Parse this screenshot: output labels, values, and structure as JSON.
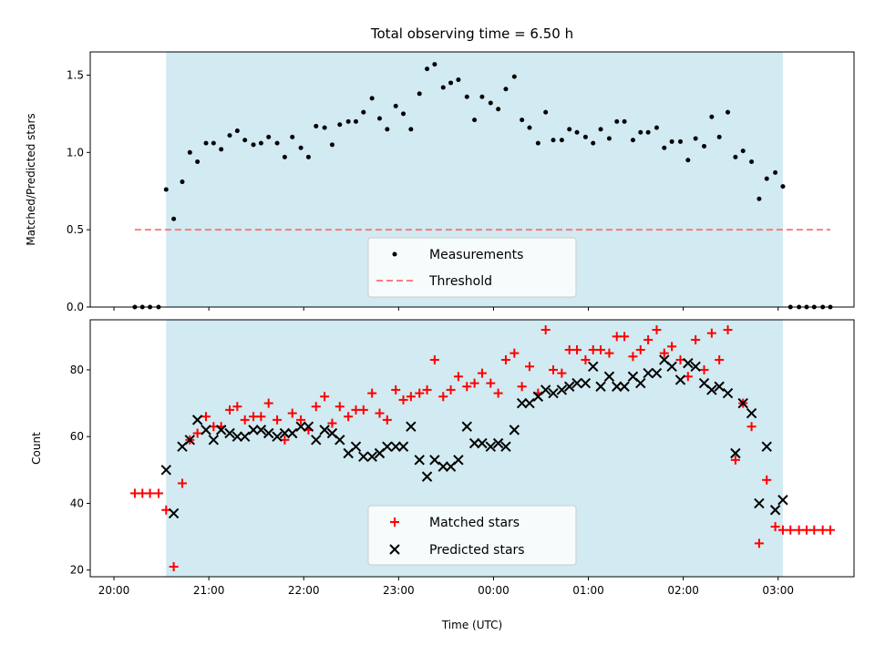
{
  "title": "Total observing time = 6.50 h",
  "chart_data": [
    {
      "type": "scatter",
      "ylabel": "Matched/Predicted stars",
      "xlim": [
        -0.25,
        7.8
      ],
      "ylim": [
        0,
        1.65
      ],
      "yticks": [
        0.0,
        0.5,
        1.0,
        1.5
      ],
      "ytick_labels": [
        "0.0",
        "0.5",
        "1.0",
        "1.5"
      ],
      "observing_window": [
        0.55,
        7.05
      ],
      "shade_color": "#add8e6",
      "legend": {
        "placement": "lower-center",
        "entries": [
          "Measurements",
          "Threshold"
        ]
      },
      "threshold": {
        "label": "Threshold",
        "value": 0.5,
        "x_range": [
          0.22,
          7.55
        ],
        "color": "#ff6666"
      },
      "series": [
        {
          "name": "Measurements",
          "color": "#000000",
          "marker": "dot",
          "x": [
            0.22,
            0.3,
            0.38,
            0.47,
            0.55,
            0.63,
            0.72,
            0.8,
            0.88,
            0.97,
            1.05,
            1.13,
            1.22,
            1.3,
            1.38,
            1.47,
            1.55,
            1.63,
            1.72,
            1.8,
            1.88,
            1.97,
            2.05,
            2.13,
            2.22,
            2.3,
            2.38,
            2.47,
            2.55,
            2.63,
            2.72,
            2.8,
            2.88,
            2.97,
            3.05,
            3.13,
            3.22,
            3.3,
            3.38,
            3.47,
            3.55,
            3.63,
            3.72,
            3.8,
            3.88,
            3.97,
            4.05,
            4.13,
            4.22,
            4.3,
            4.38,
            4.47,
            4.55,
            4.63,
            4.72,
            4.8,
            4.88,
            4.97,
            5.05,
            5.13,
            5.22,
            5.3,
            5.38,
            5.47,
            5.55,
            5.63,
            5.72,
            5.8,
            5.88,
            5.97,
            6.05,
            6.13,
            6.22,
            6.3,
            6.38,
            6.47,
            6.55,
            6.63,
            6.72,
            6.8,
            6.88,
            6.97,
            7.05,
            7.13,
            7.22,
            7.3,
            7.38,
            7.47,
            7.55
          ],
          "y": [
            0.0,
            0.0,
            0.0,
            0.0,
            0.76,
            0.57,
            0.81,
            1.0,
            0.94,
            1.06,
            1.06,
            1.02,
            1.11,
            1.14,
            1.08,
            1.05,
            1.06,
            1.1,
            1.06,
            0.97,
            1.1,
            1.03,
            0.97,
            1.17,
            1.16,
            1.05,
            1.18,
            1.2,
            1.2,
            1.26,
            1.35,
            1.22,
            1.15,
            1.3,
            1.25,
            1.15,
            1.38,
            1.54,
            1.57,
            1.42,
            1.45,
            1.47,
            1.36,
            1.21,
            1.36,
            1.32,
            1.28,
            1.41,
            1.49,
            1.21,
            1.16,
            1.06,
            1.26,
            1.08,
            1.08,
            1.15,
            1.13,
            1.1,
            1.06,
            1.15,
            1.09,
            1.2,
            1.2,
            1.08,
            1.13,
            1.13,
            1.16,
            1.03,
            1.07,
            1.07,
            0.95,
            1.09,
            1.04,
            1.23,
            1.1,
            1.26,
            0.97,
            1.01,
            0.94,
            0.7,
            0.83,
            0.87,
            0.78,
            0.0,
            0.0,
            0.0,
            0.0,
            0.0,
            0.0
          ]
        }
      ]
    },
    {
      "type": "scatter",
      "xlabel": "Time (UTC)",
      "ylabel": "Count",
      "xlim": [
        -0.25,
        7.8
      ],
      "ylim": [
        18,
        95
      ],
      "yticks": [
        20,
        40,
        60,
        80
      ],
      "ytick_labels": [
        "20",
        "40",
        "60",
        "80"
      ],
      "xticks": [
        0,
        1,
        2,
        3,
        4,
        5,
        6,
        7
      ],
      "xtick_labels": [
        "20:00",
        "21:00",
        "22:00",
        "23:00",
        "00:00",
        "01:00",
        "02:00",
        "03:00"
      ],
      "observing_window": [
        0.55,
        7.05
      ],
      "shade_color": "#add8e6",
      "legend": {
        "placement": "lower-center",
        "entries": [
          "Matched stars",
          "Predicted stars"
        ]
      },
      "series": [
        {
          "name": "Matched stars",
          "color": "#ff0000",
          "marker": "plus",
          "x": [
            0.22,
            0.3,
            0.38,
            0.47,
            0.55,
            0.63,
            0.72,
            0.8,
            0.88,
            0.97,
            1.05,
            1.13,
            1.22,
            1.3,
            1.38,
            1.47,
            1.55,
            1.63,
            1.72,
            1.8,
            1.88,
            1.97,
            2.05,
            2.13,
            2.22,
            2.3,
            2.38,
            2.47,
            2.55,
            2.63,
            2.72,
            2.8,
            2.88,
            2.97,
            3.05,
            3.13,
            3.22,
            3.3,
            3.38,
            3.47,
            3.55,
            3.63,
            3.72,
            3.8,
            3.88,
            3.97,
            4.05,
            4.13,
            4.22,
            4.3,
            4.38,
            4.47,
            4.55,
            4.63,
            4.72,
            4.8,
            4.88,
            4.97,
            5.05,
            5.13,
            5.22,
            5.3,
            5.38,
            5.47,
            5.55,
            5.63,
            5.72,
            5.8,
            5.88,
            5.97,
            6.05,
            6.13,
            6.22,
            6.3,
            6.38,
            6.47,
            6.55,
            6.63,
            6.72,
            6.8,
            6.88,
            6.97,
            7.05,
            7.13,
            7.22,
            7.3,
            7.38,
            7.47,
            7.55
          ],
          "y": [
            43,
            43,
            43,
            43,
            38,
            21,
            46,
            59,
            61,
            66,
            63,
            63,
            68,
            69,
            65,
            66,
            66,
            70,
            65,
            59,
            67,
            65,
            62,
            69,
            72,
            64,
            69,
            66,
            68,
            68,
            73,
            67,
            65,
            74,
            71,
            72,
            73,
            74,
            83,
            72,
            74,
            78,
            75,
            76,
            79,
            76,
            73,
            83,
            85,
            75,
            81,
            73,
            92,
            80,
            79,
            86,
            86,
            83,
            86,
            86,
            85,
            90,
            90,
            84,
            86,
            89,
            92,
            85,
            87,
            83,
            78,
            89,
            80,
            91,
            83,
            92,
            53,
            70,
            63,
            28,
            47,
            33,
            32,
            32,
            32,
            32,
            32,
            32,
            32
          ]
        },
        {
          "name": "Predicted stars",
          "color": "#000000",
          "marker": "x",
          "x": [
            0.55,
            0.63,
            0.72,
            0.8,
            0.88,
            0.97,
            1.05,
            1.13,
            1.22,
            1.3,
            1.38,
            1.47,
            1.55,
            1.63,
            1.72,
            1.8,
            1.88,
            1.97,
            2.05,
            2.13,
            2.22,
            2.3,
            2.38,
            2.47,
            2.55,
            2.63,
            2.72,
            2.8,
            2.88,
            2.97,
            3.05,
            3.13,
            3.22,
            3.3,
            3.38,
            3.47,
            3.55,
            3.63,
            3.72,
            3.8,
            3.88,
            3.97,
            4.05,
            4.13,
            4.22,
            4.3,
            4.38,
            4.47,
            4.55,
            4.63,
            4.72,
            4.8,
            4.88,
            4.97,
            5.05,
            5.13,
            5.22,
            5.3,
            5.38,
            5.47,
            5.55,
            5.63,
            5.72,
            5.8,
            5.88,
            5.97,
            6.05,
            6.13,
            6.22,
            6.3,
            6.38,
            6.47,
            6.55,
            6.63,
            6.72,
            6.8,
            6.88,
            6.97,
            7.05
          ],
          "y": [
            50,
            37,
            57,
            59,
            65,
            62,
            59,
            62,
            61,
            60,
            60,
            62,
            62,
            61,
            60,
            61,
            61,
            63,
            63,
            59,
            62,
            61,
            59,
            55,
            57,
            54,
            54,
            55,
            57,
            57,
            57,
            63,
            53,
            48,
            53,
            51,
            51,
            53,
            63,
            58,
            58,
            57,
            58,
            57,
            62,
            70,
            70,
            72,
            74,
            73,
            74,
            75,
            76,
            76,
            81,
            75,
            78,
            75,
            75,
            78,
            76,
            79,
            79,
            83,
            81,
            77,
            82,
            81,
            76,
            74,
            75,
            73,
            55,
            70,
            67,
            40,
            57,
            38,
            41
          ]
        }
      ]
    }
  ]
}
